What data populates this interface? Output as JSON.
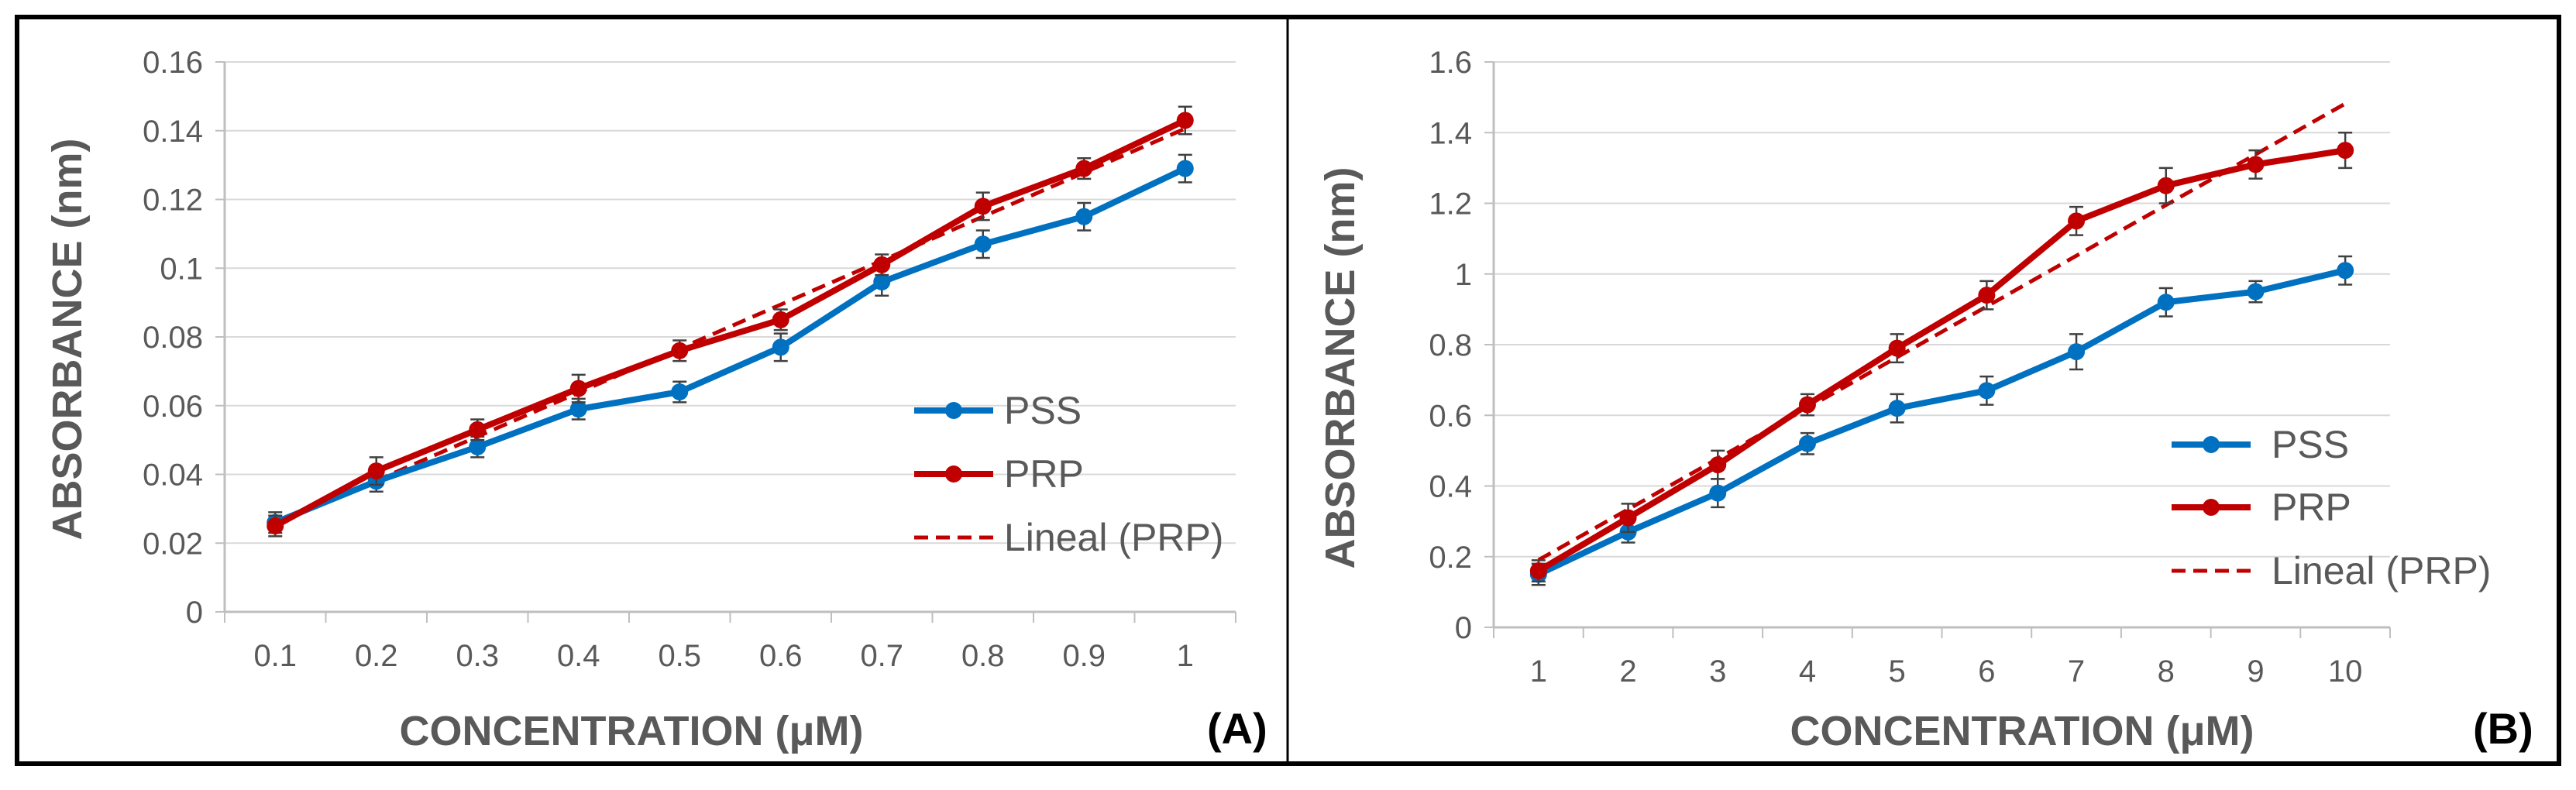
{
  "colors": {
    "pss": "#0070C0",
    "prp": "#C00000",
    "grid": "#D9D9D9",
    "axis": "#BFBFBF",
    "text": "#595959",
    "frame": "#000000"
  },
  "chart_data": [
    {
      "panel_label": "(A)",
      "type": "line",
      "xlabel": "CONCENTRATION (μM)",
      "ylabel": "ABSORBANCE (nm)",
      "categories": [
        "0.1",
        "0.2",
        "0.3",
        "0.4",
        "0.5",
        "0.6",
        "0.7",
        "0.8",
        "0.9",
        "1"
      ],
      "ylim": [
        0,
        0.16
      ],
      "yticks": [
        "0",
        "0.02",
        "0.04",
        "0.06",
        "0.08",
        "0.1",
        "0.12",
        "0.14",
        "0.16"
      ],
      "series": [
        {
          "name": "PSS",
          "color": "#0070C0",
          "values": [
            0.026,
            0.038,
            0.048,
            0.059,
            0.064,
            0.077,
            0.096,
            0.107,
            0.115,
            0.129
          ],
          "errors": [
            0.003,
            0.003,
            0.003,
            0.003,
            0.003,
            0.004,
            0.004,
            0.004,
            0.004,
            0.004
          ]
        },
        {
          "name": "PRP",
          "color": "#C00000",
          "values": [
            0.025,
            0.041,
            0.053,
            0.065,
            0.076,
            0.085,
            0.101,
            0.118,
            0.129,
            0.143
          ],
          "errors": [
            0.003,
            0.004,
            0.003,
            0.004,
            0.003,
            0.003,
            0.003,
            0.004,
            0.003,
            0.004
          ]
        }
      ],
      "trendline": {
        "name": "Lineal (PRP)",
        "color": "#C00000",
        "slope": 0.0128,
        "intercept": 0.0126
      },
      "legend_position": "bottom-right"
    },
    {
      "panel_label": "(B)",
      "type": "line",
      "xlabel": "CONCENTRATION (μM)",
      "ylabel": "ABSORBANCE (nm)",
      "categories": [
        "1",
        "2",
        "3",
        "4",
        "5",
        "6",
        "7",
        "8",
        "9",
        "10"
      ],
      "ylim": [
        0,
        1.6
      ],
      "yticks": [
        "0",
        "0.2",
        "0.4",
        "0.6",
        "0.8",
        "1",
        "1.2",
        "1.4",
        "1.6"
      ],
      "series": [
        {
          "name": "PSS",
          "color": "#0070C0",
          "values": [
            0.15,
            0.27,
            0.38,
            0.52,
            0.62,
            0.67,
            0.78,
            0.92,
            0.95,
            1.01
          ],
          "errors": [
            0.03,
            0.03,
            0.04,
            0.03,
            0.04,
            0.04,
            0.05,
            0.04,
            0.03,
            0.04
          ]
        },
        {
          "name": "PRP",
          "color": "#C00000",
          "values": [
            0.16,
            0.31,
            0.46,
            0.63,
            0.79,
            0.94,
            1.15,
            1.25,
            1.31,
            1.35
          ],
          "errors": [
            0.03,
            0.04,
            0.04,
            0.03,
            0.04,
            0.04,
            0.04,
            0.05,
            0.04,
            0.05
          ]
        }
      ],
      "trendline": {
        "name": "Lineal (PRP)",
        "color": "#C00000",
        "slope": 0.1435,
        "intercept": 0.047
      },
      "legend_position": "bottom-right"
    }
  ]
}
